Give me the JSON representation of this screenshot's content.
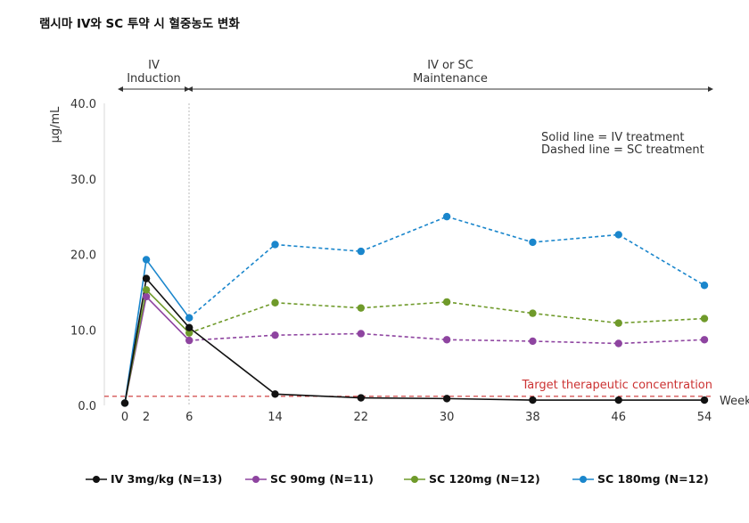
{
  "page": {
    "title": "램시마 IV와 SC 투약 시 혈중농도 변화"
  },
  "chart_data": {
    "type": "line",
    "ylabel": "μg/mL",
    "xlabel": "Weeks",
    "ylim": [
      0,
      40
    ],
    "yticks": [
      "0.0",
      "10.0",
      "20.0",
      "30.0",
      "40.0"
    ],
    "ytick_values": [
      0,
      10,
      20,
      30,
      40
    ],
    "xticks": [
      "0",
      "2",
      "6",
      "14",
      "22",
      "30",
      "38",
      "46",
      "54"
    ],
    "xtick_values": [
      0,
      2,
      6,
      14,
      22,
      30,
      38,
      46,
      54
    ],
    "xlim": [
      0,
      54
    ],
    "phases": [
      {
        "line1": "IV",
        "line2": "Induction",
        "from": 0,
        "to": 6
      },
      {
        "line1": "IV or SC",
        "line2": "Maintenance",
        "from": 6,
        "to": 54
      }
    ],
    "note": [
      "Solid line = IV treatment",
      "Dashed line = SC treatment"
    ],
    "threshold": {
      "label": "Target therapeutic concentration",
      "value": 1.2,
      "color": "#cc3333"
    },
    "series": [
      {
        "name": "IV 3mg/kg (N=13)",
        "color": "#111111",
        "x": [
          0,
          2,
          6,
          14,
          22,
          30,
          38,
          46,
          54
        ],
        "y": [
          0.3,
          16.8,
          10.3,
          1.5,
          1.0,
          0.9,
          0.7,
          0.7,
          0.7
        ],
        "style": [
          "solid",
          "solid",
          "solid",
          "solid",
          "solid",
          "solid",
          "solid",
          "solid"
        ]
      },
      {
        "name": "SC 90mg (N=11)",
        "color": "#8e44a0",
        "x": [
          0,
          2,
          6,
          14,
          22,
          30,
          38,
          46,
          54
        ],
        "y": [
          0.3,
          14.4,
          8.6,
          9.3,
          9.5,
          8.7,
          8.5,
          8.2,
          8.7
        ],
        "style": [
          "solid",
          "solid",
          "dashed",
          "dashed",
          "dashed",
          "dashed",
          "dashed",
          "dashed"
        ]
      },
      {
        "name": "SC 120mg (N=12)",
        "color": "#6f9a2a",
        "x": [
          0,
          2,
          6,
          14,
          22,
          30,
          38,
          46,
          54
        ],
        "y": [
          0.3,
          15.3,
          9.6,
          13.6,
          12.9,
          13.7,
          12.2,
          10.9,
          11.5
        ],
        "style": [
          "solid",
          "solid",
          "dashed",
          "dashed",
          "dashed",
          "dashed",
          "dashed",
          "dashed"
        ]
      },
      {
        "name": "SC 180mg (N=12)",
        "color": "#1a86cc",
        "x": [
          0,
          2,
          6,
          14,
          22,
          30,
          38,
          46,
          54
        ],
        "y": [
          0.3,
          19.3,
          11.6,
          21.3,
          20.4,
          25.0,
          21.6,
          22.6,
          15.9
        ],
        "style": [
          "solid",
          "solid",
          "dashed",
          "dashed",
          "dashed",
          "dashed",
          "dashed",
          "dashed"
        ]
      }
    ]
  }
}
